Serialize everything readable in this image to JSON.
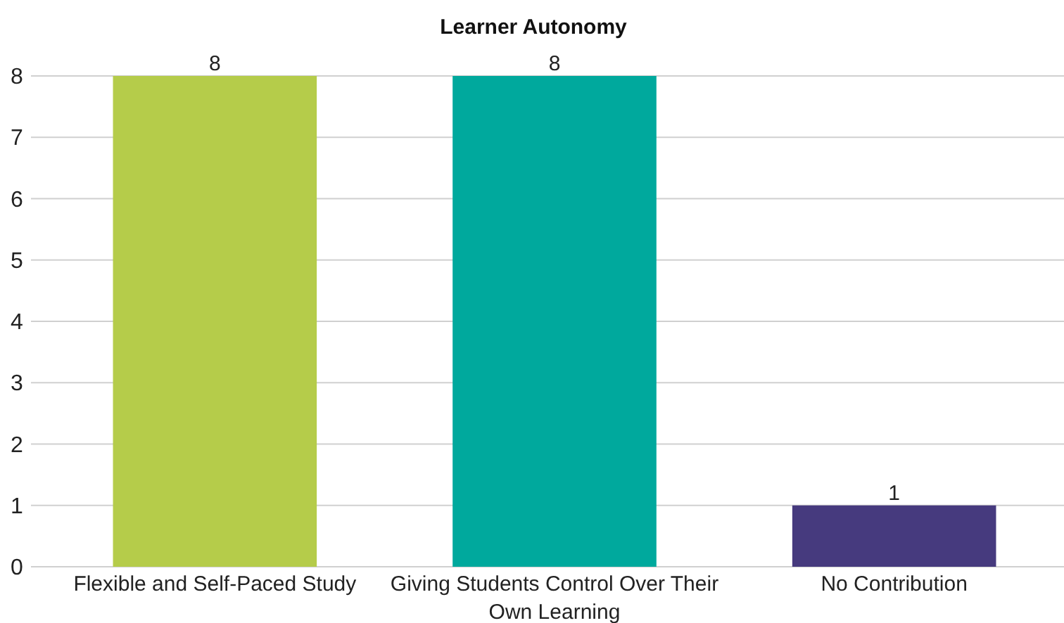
{
  "chart_data": {
    "type": "bar",
    "title": "Learner Autonomy",
    "categories": [
      "Flexible and Self-Paced Study",
      "Giving Students Control Over Their Own Learning",
      "No Contribution"
    ],
    "values": [
      8,
      8,
      1
    ],
    "colors": [
      "#b5cc4a",
      "#00a99d",
      "#463a7e"
    ],
    "ylim": [
      0,
      8
    ],
    "yticks": [
      0,
      1,
      2,
      3,
      4,
      5,
      6,
      7,
      8
    ],
    "grid": "y",
    "data_labels": true
  }
}
